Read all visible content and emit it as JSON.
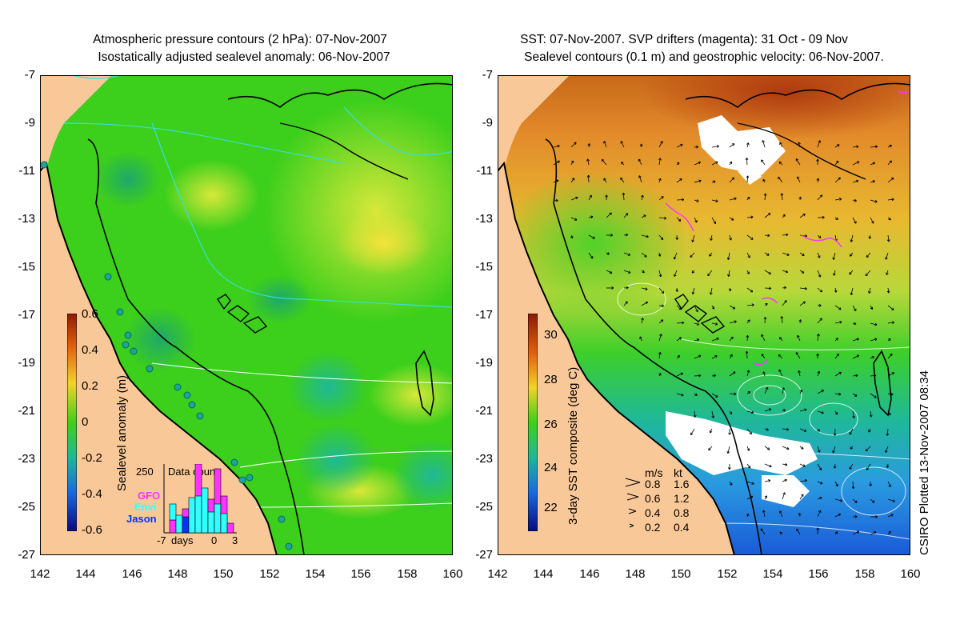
{
  "left_panel": {
    "title_line1": "Atmospheric pressure contours (2 hPa): 07-Nov-2007",
    "title_line2": "Isostatically adjusted sealevel anomaly: 06-Nov-2007",
    "colorbar_label": "Sealevel anomaly (m)",
    "colorbar_ticks": [
      "0.6",
      "0.4",
      "0.2",
      "0",
      "-0.2",
      "-0.4",
      "-0.6"
    ],
    "inset": {
      "title": "Data count",
      "ymax": "250",
      "xlabel": "days",
      "xticks": [
        "-7",
        "0",
        "3"
      ],
      "legend": [
        {
          "label": "GFO",
          "color": "#ff33ff"
        },
        {
          "label": "Envi",
          "color": "#33ffff"
        },
        {
          "label": "Jason",
          "color": "#0033ff"
        }
      ]
    }
  },
  "right_panel": {
    "title_line1": "SST: 07-Nov-2007. SVP drifters (magenta): 31 Oct - 09 Nov",
    "title_line2": "Sealevel contours (0.1 m) and geostrophic velocity: 06-Nov-2007.",
    "colorbar_label": "3-day SST composite (deg C)",
    "colorbar_ticks": [
      "30",
      "28",
      "26",
      "24",
      "22"
    ],
    "velocity_legend": {
      "header_ms": "m/s",
      "header_kt": "kt",
      "rows": [
        {
          "ms": "0.8",
          "kt": "1.6"
        },
        {
          "ms": "0.6",
          "kt": "1.2"
        },
        {
          "ms": "0.4",
          "kt": "0.8"
        },
        {
          "ms": "0.2",
          "kt": "0.4"
        }
      ]
    },
    "credit": "CSIRO Plotted 13-Nov-2007 08:34"
  },
  "axes": {
    "y_ticks": [
      "-7",
      "-9",
      "-11",
      "-13",
      "-15",
      "-17",
      "-19",
      "-21",
      "-23",
      "-25",
      "-27"
    ],
    "x_ticks": [
      "142",
      "144",
      "146",
      "148",
      "150",
      "152",
      "154",
      "156",
      "158",
      "160"
    ],
    "lon_range": [
      142,
      160
    ],
    "lat_range": [
      -27,
      -7
    ]
  },
  "colors": {
    "land": "#f9c898",
    "ssh_field": "#3fcf1a",
    "coast": "#000000",
    "pressure_contour": "#33e0e0",
    "drifter": "#ff33ff"
  }
}
